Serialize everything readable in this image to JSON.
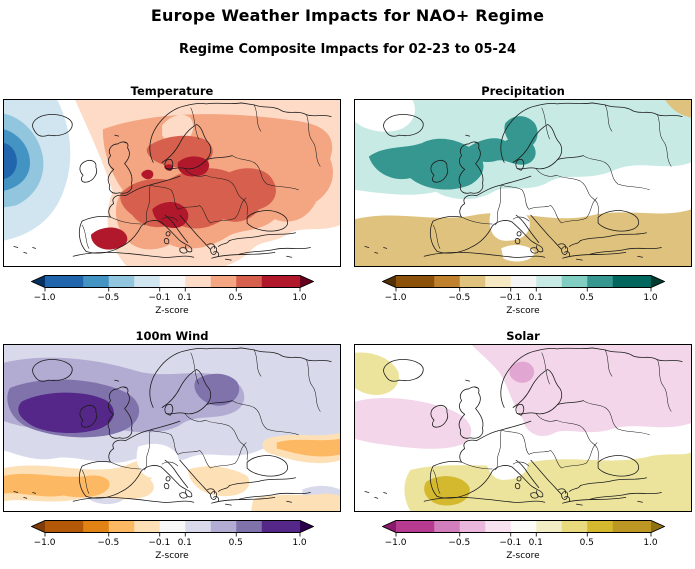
{
  "figure": {
    "title": "Europe Weather Impacts for NAO+ Regime",
    "subtitle": "Regime Composite Impacts for 02-23 to 05-24"
  },
  "colorbar": {
    "label": "Z-score",
    "ticks": [
      "−1.0",
      "−0.5",
      "−0.1",
      "0.1",
      "0.5",
      "1.0"
    ],
    "tick_positions": [
      0,
      25,
      45,
      55,
      75,
      100
    ],
    "segment_widths": [
      15,
      10,
      10,
      10,
      10,
      10,
      10,
      10,
      15
    ],
    "levels": [
      -1.0,
      -0.7,
      -0.5,
      -0.3,
      -0.1,
      0.1,
      0.3,
      0.5,
      0.7,
      1.0
    ],
    "extend": "both"
  },
  "panels": [
    {
      "title": "Temperature",
      "palette": {
        "under": "#053061",
        "colors": [
          "#2166ac",
          "#4393c3",
          "#92c5de",
          "#d1e5f0",
          "#f7f7f7",
          "#fddbc7",
          "#f4a582",
          "#d6604d",
          "#b2182b"
        ],
        "over": "#67001f"
      }
    },
    {
      "title": "Precipitation",
      "palette": {
        "under": "#543005",
        "colors": [
          "#8c510a",
          "#bf812d",
          "#dfc27d",
          "#f6e8c3",
          "#f5f5f5",
          "#c7eae5",
          "#80cdc1",
          "#35978f",
          "#01665e"
        ],
        "over": "#003c30"
      }
    },
    {
      "title": "100m Wind",
      "palette": {
        "under": "#7f3b08",
        "colors": [
          "#b35806",
          "#e08214",
          "#fdb863",
          "#fee0b6",
          "#f7f7f7",
          "#d8daeb",
          "#b2abd2",
          "#8073ac",
          "#542788"
        ],
        "over": "#2d004b"
      }
    },
    {
      "title": "Solar",
      "palette": {
        "under": "#8a1a6c",
        "colors": [
          "#b53a90",
          "#d27ebc",
          "#eab6dc",
          "#f8e2f0",
          "#fbfbf7",
          "#f3edc5",
          "#e9da7d",
          "#d4b82e",
          "#bc9723"
        ],
        "over": "#8f7212"
      }
    }
  ],
  "chart_data": {
    "type": "heatmap",
    "subtype": "geographic composite anomaly maps (2x2 grid over Europe / North Atlantic)",
    "title": "Europe Weather Impacts for NAO+ Regime",
    "subtitle": "Regime Composite Impacts for 02-23 to 05-24",
    "units": "Z-score",
    "colorbar_ticks": [
      -1.0,
      -0.5,
      -0.1,
      0.1,
      0.5,
      1.0
    ],
    "colorbar_levels": [
      -1.0,
      -0.7,
      -0.5,
      -0.3,
      -0.1,
      0.1,
      0.3,
      0.5,
      0.7,
      1.0
    ],
    "colorbar_extend": "both",
    "panels": [
      {
        "title": "Temperature",
        "colormap": "blue-white-red (RdBu reversed)",
        "pattern": [
          {
            "region": "North Atlantic southwest of Iceland",
            "z": -1.0
          },
          {
            "region": "Atlantic band west of Ireland",
            "z": -0.4
          },
          {
            "region": "Most of continental Europe",
            "z": 0.5
          },
          {
            "region": "Iberia, Alps/N Italy, Denmark-Poland-Baltic, N England",
            "z": 1.0
          },
          {
            "region": "Arctic fringe, S Norway interior, far east edge",
            "z": 0.2
          },
          {
            "region": "Turkey / SE corner",
            "z": 0.0
          }
        ]
      },
      {
        "title": "Precipitation",
        "colormap": "brown-white-teal (BrBG)",
        "pattern": [
          {
            "region": "NE Atlantic, Scotland, Norwegian coast",
            "z": 0.8
          },
          {
            "region": "Northern Europe, Scandinavia, Baltic, NW Russia",
            "z": 0.3
          },
          {
            "region": "Mid-latitude band (central Europe)",
            "z": 0.0
          },
          {
            "region": "Iberia, Mediterranean, Balkans, Turkey",
            "z": -0.4
          },
          {
            "region": "NE corner of domain",
            "z": -0.3
          }
        ]
      },
      {
        "title": "100m Wind",
        "colormap": "orange-white-purple (PuOr)",
        "pattern": [
          {
            "region": "Atlantic west of Ireland / British Isles",
            "z": 1.0
          },
          {
            "region": "North Sea, southern Scandinavia",
            "z": 0.6
          },
          {
            "region": "Northern Europe generally",
            "z": 0.3
          },
          {
            "region": "France / Alps",
            "z": 0.0
          },
          {
            "region": "Iberia, Mediterranean, SE Europe, Black Sea area",
            "z": -0.5
          }
        ]
      },
      {
        "title": "Solar",
        "colormap": "magenta-white-gold",
        "pattern": [
          {
            "region": "Scandinavia, Baltic, NW Russia, Atlantic band to British Isles",
            "z": -0.3
          },
          {
            "region": "Norwegian coast spot",
            "z": -0.5
          },
          {
            "region": "Central Europe / France",
            "z": 0.0
          },
          {
            "region": "Iberia, Italy, Balkans, Turkey",
            "z": 0.4
          },
          {
            "region": "Southern Portugal / SW Iberia",
            "z": 0.8
          },
          {
            "region": "Patch west of Iceland",
            "z": 0.3
          }
        ]
      }
    ]
  }
}
